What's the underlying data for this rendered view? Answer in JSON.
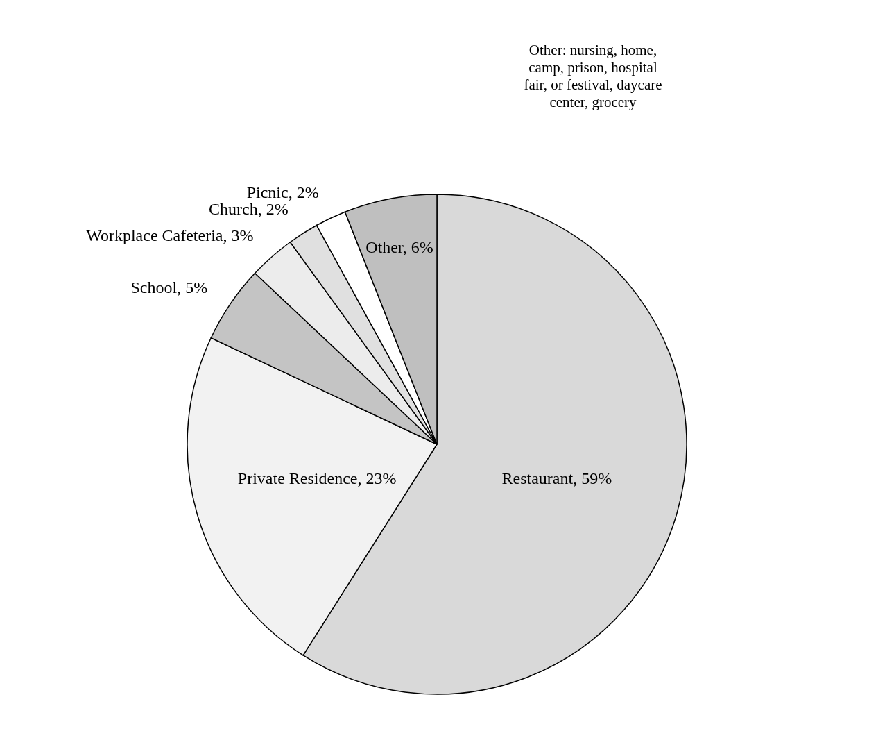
{
  "chart_data": {
    "type": "pie",
    "categories": [
      "Restaurant",
      "Private Residence",
      "School",
      "Workplace Cafeteria",
      "Church",
      "Picnic",
      "Other"
    ],
    "values": [
      59,
      23,
      5,
      3,
      2,
      2,
      6
    ],
    "colors": [
      "#d9d9d9",
      "#f2f2f2",
      "#c4c4c4",
      "#ececec",
      "#e0e0e0",
      "#ffffff",
      "#bfbfbf"
    ],
    "value_labels": [
      "59%",
      "23%",
      "5%",
      "3%",
      "2%",
      "2%",
      "6%"
    ],
    "annotations": [
      "Other: nursing, home, camp, prison, hospital fair, or festival, daycare center, grocery"
    ]
  }
}
